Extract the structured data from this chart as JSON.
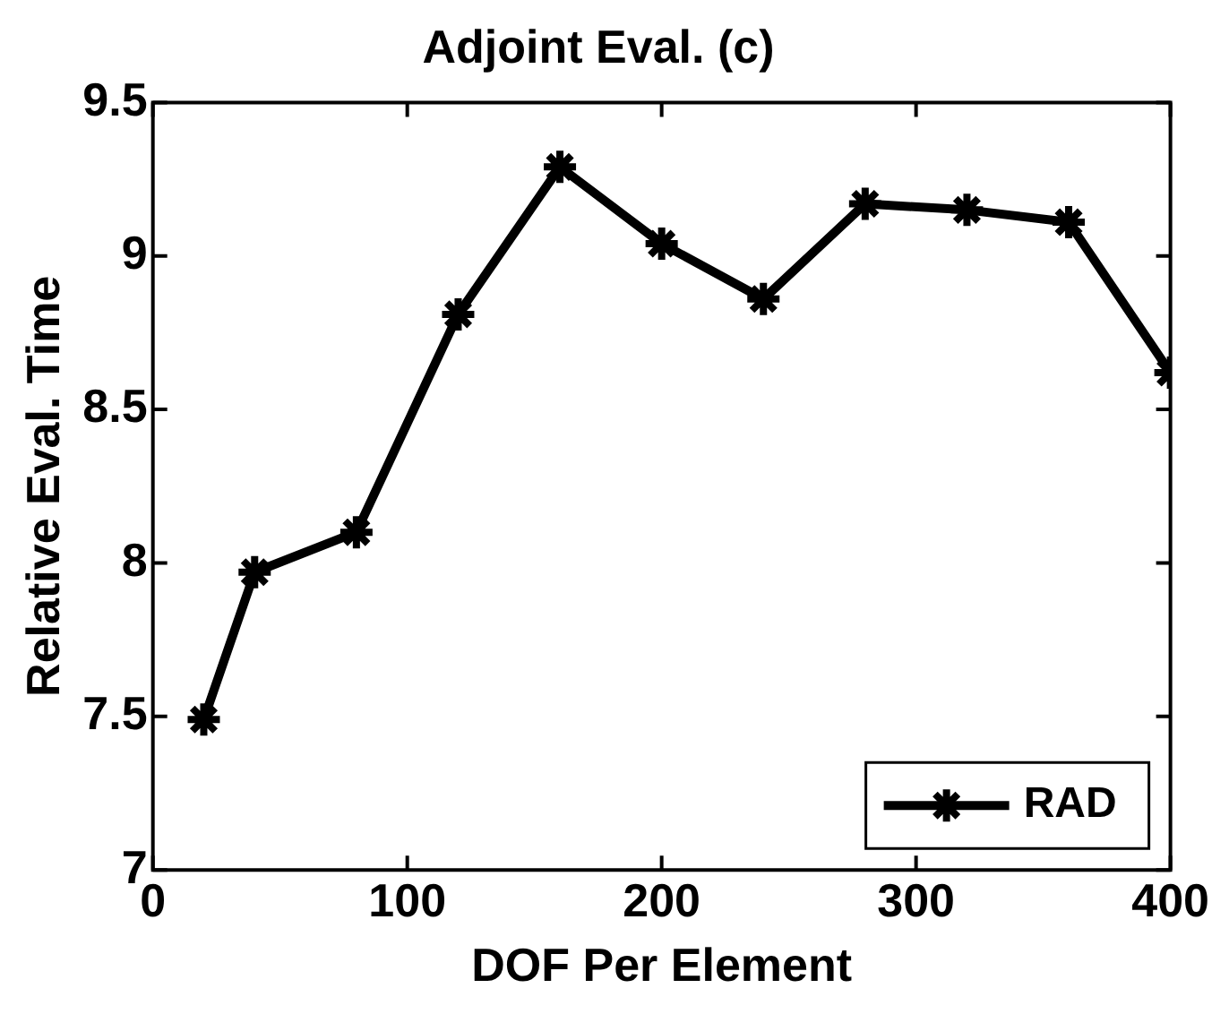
{
  "chart_data": {
    "type": "line",
    "title": "Adjoint Eval. (c)",
    "xlabel": "DOF Per Element",
    "ylabel": "Relative Eval. Time",
    "x": [
      20,
      40,
      80,
      120,
      160,
      200,
      240,
      280,
      320,
      360,
      400
    ],
    "series": [
      {
        "name": "RAD",
        "color": "#000000",
        "values": [
          7.49,
          7.97,
          8.1,
          8.81,
          9.29,
          9.04,
          8.86,
          9.17,
          9.15,
          9.11,
          8.62
        ]
      }
    ],
    "xlim": [
      0,
      400
    ],
    "xticks": [
      0,
      100,
      200,
      300,
      400
    ],
    "ylim": [
      7,
      9.5
    ],
    "yticks": [
      7,
      7.5,
      8,
      8.5,
      9,
      9.5
    ],
    "grid": false,
    "legend": "bottom right",
    "marker": "cross",
    "line_style": "solid"
  }
}
